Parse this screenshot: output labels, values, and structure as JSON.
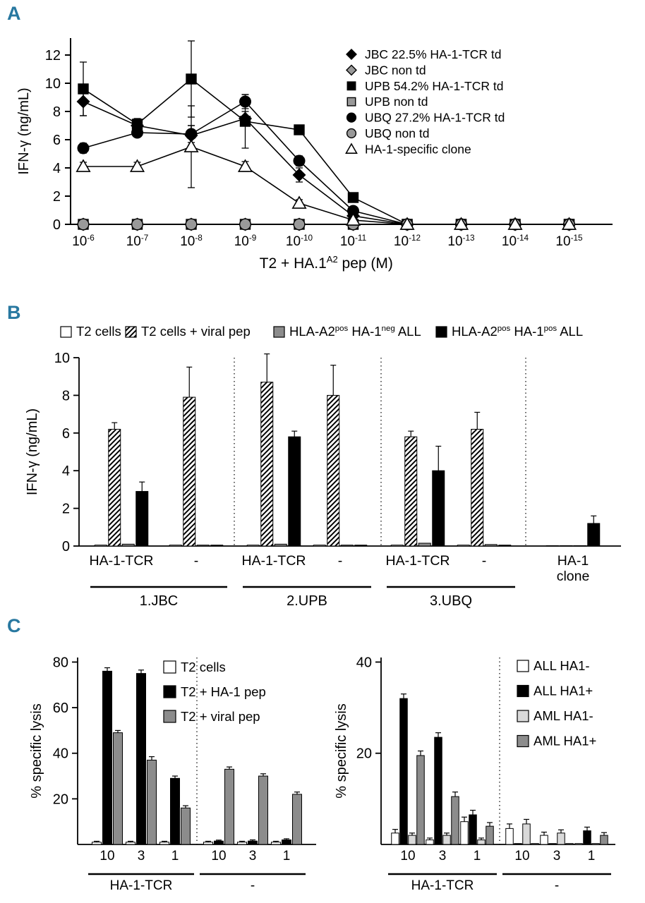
{
  "figure": {
    "panel_labels": {
      "A": "A",
      "B": "B",
      "C": "C"
    },
    "accent_color": "#2878a0"
  },
  "chart_data": [
    {
      "id": "chartA",
      "panel": "A",
      "type": "line",
      "title": "",
      "xlabel": "T2 + HA.1^A2^ pep (M)",
      "ylabel": "IFN-γ (ng/mL)",
      "x_tick_labels": [
        "10^-6^",
        "10^-7^",
        "10^-8^",
        "10^-9^",
        "10^-10^",
        "10^-11^",
        "10^-12^",
        "10^-13^",
        "10^-14^",
        "10^-15^"
      ],
      "yticks": [
        0,
        2,
        4,
        6,
        8,
        10,
        12
      ],
      "ylim": [
        0,
        13.2
      ],
      "legend_position": "upper right",
      "series": [
        {
          "name": "JBC 22.5% HA-1-TCR td",
          "marker": "diamond",
          "fill": "#000000",
          "values": [
            8.7,
            7.0,
            6.3,
            7.5,
            3.5,
            0.6,
            0,
            0,
            0,
            0
          ],
          "errors": [
            1.0,
            0.4,
            0.7,
            0.5,
            0.5,
            0.15,
            0,
            0,
            0,
            0
          ]
        },
        {
          "name": "JBC non td",
          "marker": "diamond",
          "fill": "#999999",
          "values": [
            0,
            0,
            0,
            0,
            0,
            0,
            0,
            0,
            0,
            0
          ],
          "errors": [
            0,
            0,
            0,
            0,
            0,
            0,
            0,
            0,
            0,
            0
          ]
        },
        {
          "name": "UPB 54.2% HA-1-TCR td",
          "marker": "square",
          "fill": "#000000",
          "values": [
            9.6,
            7.1,
            10.3,
            7.3,
            6.7,
            1.9,
            0,
            0,
            0,
            0
          ],
          "errors": [
            1.9,
            0.4,
            2.7,
            1.9,
            0.3,
            0.25,
            0,
            0,
            0,
            0
          ]
        },
        {
          "name": "UPB non td",
          "marker": "square",
          "fill": "#999999",
          "values": [
            0,
            0,
            0,
            0,
            0,
            0,
            0,
            0,
            0,
            0
          ],
          "errors": [
            0,
            0,
            0,
            0,
            0,
            0,
            0,
            0,
            0,
            0
          ]
        },
        {
          "name": "UBQ 27.2% HA-1-TCR td",
          "marker": "circle",
          "fill": "#000000",
          "values": [
            5.4,
            6.5,
            6.4,
            8.7,
            4.5,
            0.95,
            0,
            0,
            0,
            0
          ],
          "errors": [
            0.35,
            0.3,
            0.6,
            0.5,
            0.35,
            0.2,
            0,
            0,
            0,
            0
          ]
        },
        {
          "name": "UBQ non td",
          "marker": "circle",
          "fill": "#999999",
          "values": [
            0,
            0,
            0,
            0,
            0,
            0,
            0,
            0,
            0,
            0
          ],
          "errors": [
            0,
            0,
            0,
            0,
            0,
            0,
            0,
            0,
            0,
            0
          ]
        },
        {
          "name": "HA-1-specific clone",
          "marker": "triangle",
          "fill": "#ffffff",
          "values": [
            4.1,
            4.1,
            5.5,
            4.1,
            1.5,
            0.3,
            0,
            0,
            0,
            0
          ],
          "errors": [
            0.3,
            0.3,
            2.9,
            0.35,
            0.25,
            0.1,
            0,
            0,
            0,
            0
          ]
        }
      ]
    },
    {
      "id": "chartB",
      "panel": "B",
      "type": "bar",
      "ylabel": "IFN-γ (ng/mL)",
      "yticks": [
        0,
        2,
        4,
        6,
        8,
        10
      ],
      "ylim": [
        0,
        10
      ],
      "legend_position": "top row",
      "series": [
        {
          "name": "T2 cells",
          "fill": "#ffffff"
        },
        {
          "name": "T2 cells + viral pep",
          "fill": "hatch"
        },
        {
          "name": "HLA-A2^pos^ HA-1^neg^ ALL",
          "fill": "#8c8c8c"
        },
        {
          "name": "HLA-A2^pos^ HA-1^pos^ ALL",
          "fill": "#000000"
        }
      ],
      "groups": [
        {
          "label": "HA-1-TCR",
          "values": [
            0.05,
            6.2,
            0.1,
            2.9
          ],
          "errors": [
            0,
            0.35,
            0,
            0.5
          ]
        },
        {
          "label": "-",
          "values": [
            0.05,
            7.9,
            0.05,
            0.05
          ],
          "errors": [
            0,
            1.6,
            0,
            0
          ]
        },
        {
          "label": "HA-1-TCR",
          "values": [
            0.05,
            8.7,
            0.1,
            5.8
          ],
          "errors": [
            0,
            1.5,
            0,
            0.3
          ]
        },
        {
          "label": "-",
          "values": [
            0.05,
            8.0,
            0.05,
            0.05
          ],
          "errors": [
            0,
            1.6,
            0,
            0
          ]
        },
        {
          "label": "HA-1-TCR",
          "values": [
            0.05,
            5.8,
            0.15,
            4.0
          ],
          "errors": [
            0,
            0.3,
            0,
            1.3
          ]
        },
        {
          "label": "-",
          "values": [
            0.05,
            6.2,
            0.08,
            0.05
          ],
          "errors": [
            0,
            0.9,
            0,
            0
          ]
        },
        {
          "label": "HA-1\nclone",
          "values": [
            0.02,
            0.02,
            0.02,
            1.2
          ],
          "errors": [
            0,
            0,
            0,
            0.4
          ]
        }
      ],
      "group_sections": [
        {
          "label": "1.JBC",
          "from": 0,
          "to": 1
        },
        {
          "label": "2.UPB",
          "from": 2,
          "to": 3
        },
        {
          "label": "3.UBQ",
          "from": 4,
          "to": 5
        }
      ]
    },
    {
      "id": "chartC1",
      "panel": "C",
      "type": "bar",
      "ylabel": "% specific lysis",
      "yticks": [
        20,
        40,
        60,
        80
      ],
      "ylim": [
        0,
        82
      ],
      "legend_position": "upper middle",
      "series": [
        {
          "name": "T2 cells",
          "fill": "#ffffff"
        },
        {
          "name": "T2 + HA-1 pep",
          "fill": "#000000"
        },
        {
          "name": "T2 + viral pep",
          "fill": "#8c8c8c"
        }
      ],
      "groups": [
        {
          "label": "10",
          "values": [
            1,
            76,
            49
          ],
          "errors": [
            0.4,
            1.5,
            1
          ]
        },
        {
          "label": "3",
          "values": [
            1,
            75,
            37
          ],
          "errors": [
            0.4,
            1.5,
            1.5
          ]
        },
        {
          "label": "1",
          "values": [
            1,
            29,
            16
          ],
          "errors": [
            0.4,
            1,
            1
          ]
        },
        {
          "label": "10",
          "values": [
            1,
            1.5,
            33
          ],
          "errors": [
            0.4,
            0.4,
            1
          ]
        },
        {
          "label": "3",
          "values": [
            1,
            1.5,
            30
          ],
          "errors": [
            0.4,
            0.5,
            1
          ]
        },
        {
          "label": "1",
          "values": [
            1,
            2,
            22
          ],
          "errors": [
            0.4,
            0.5,
            1
          ]
        }
      ],
      "group_sections": [
        {
          "label": "HA-1-TCR",
          "from": 0,
          "to": 2
        },
        {
          "label": "-",
          "from": 3,
          "to": 5
        }
      ]
    },
    {
      "id": "chartC2",
      "panel": "C",
      "type": "bar",
      "ylabel": "% specific lysis",
      "yticks": [
        20,
        40
      ],
      "ylim": [
        0,
        41
      ],
      "legend_position": "upper right",
      "series": [
        {
          "name": "ALL HA1-",
          "fill": "#ffffff"
        },
        {
          "name": "ALL HA1+",
          "fill": "#000000"
        },
        {
          "name": "AML HA1-",
          "fill": "#d9d9d9"
        },
        {
          "name": "AML HA1+",
          "fill": "#8c8c8c"
        }
      ],
      "groups": [
        {
          "label": "10",
          "values": [
            2.5,
            32,
            2,
            19.5
          ],
          "errors": [
            0.8,
            1,
            0.5,
            1
          ]
        },
        {
          "label": "3",
          "values": [
            1,
            23.5,
            2,
            10.5
          ],
          "errors": [
            0.4,
            1,
            0.5,
            1
          ]
        },
        {
          "label": "1",
          "values": [
            5,
            6.5,
            1,
            4
          ],
          "errors": [
            1,
            1,
            0.4,
            0.8
          ]
        },
        {
          "label": "10",
          "values": [
            3.5,
            0.2,
            4.5,
            0.2
          ],
          "errors": [
            1,
            0,
            1,
            0
          ]
        },
        {
          "label": "3",
          "values": [
            2,
            0.2,
            2.5,
            0.2
          ],
          "errors": [
            0.7,
            0,
            0.7,
            0
          ]
        },
        {
          "label": "1",
          "values": [
            0.2,
            3,
            0.2,
            2
          ],
          "errors": [
            0,
            0.8,
            0,
            0.6
          ]
        }
      ],
      "group_sections": [
        {
          "label": "HA-1-TCR",
          "from": 0,
          "to": 2
        },
        {
          "label": "-",
          "from": 3,
          "to": 5
        }
      ]
    }
  ]
}
